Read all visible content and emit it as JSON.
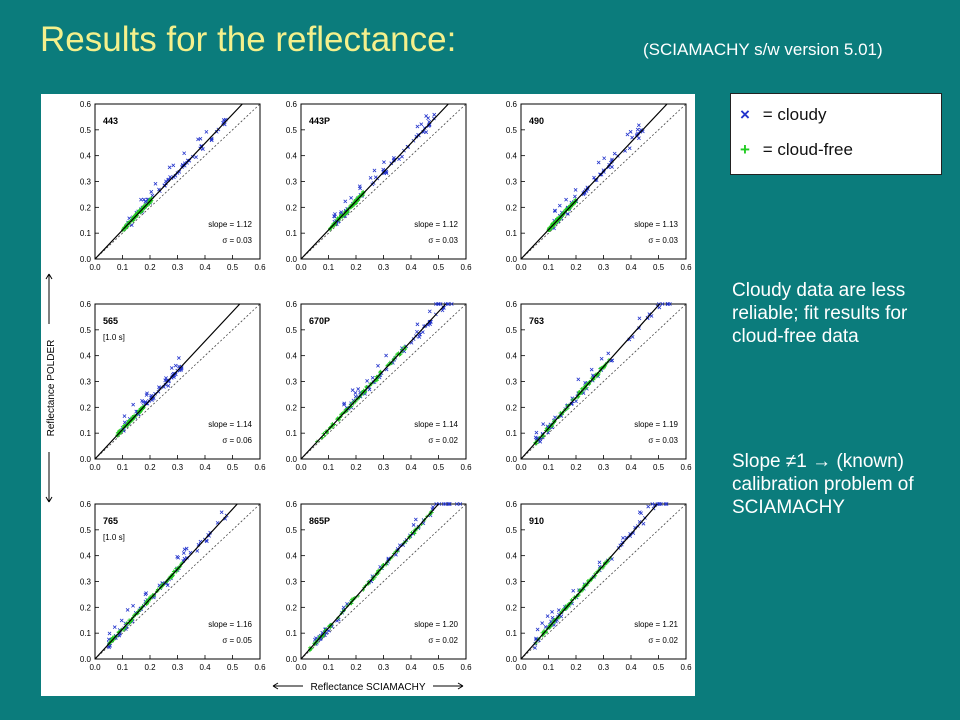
{
  "header": {
    "title": "Results for the reflectance:",
    "subtitle": "(SCIAMACHY s/w version 5.01)"
  },
  "legend": {
    "cloudy_symbol": "×",
    "cloudy_label": " = cloudy",
    "free_symbol": "+",
    "free_label": " = cloud-free"
  },
  "notes": {
    "note1": "Cloudy data are less reliable; fit results for cloud-free data",
    "note2": "Slope ≠1  → (known) calibration problem of SCIAMACHY"
  },
  "colors": {
    "background": "#0b7c7c",
    "title": "#f4f08c",
    "cloudy": "#2233cc",
    "cloud_free": "#22cc22"
  },
  "chart_data": {
    "type": "scatter",
    "xlabel": "Reflectance SCIAMACHY",
    "ylabel": "Reflectance POLDER",
    "xlim": [
      0,
      0.6
    ],
    "ylim": [
      0,
      0.6
    ],
    "ticks": [
      "0.0",
      "0.1",
      "0.2",
      "0.3",
      "0.4",
      "0.5",
      "0.6"
    ],
    "series_legend": [
      "cloudy",
      "cloud-free"
    ],
    "panels": [
      {
        "label": "443",
        "sublabel": "",
        "slope": "1.12",
        "sigma": "0.03",
        "cloudy_range": [
          0.12,
          0.48
        ],
        "free_range": [
          0.1,
          0.21
        ]
      },
      {
        "label": "443P",
        "sublabel": "",
        "slope": "1.12",
        "sigma": "0.03",
        "cloudy_range": [
          0.12,
          0.5
        ],
        "free_range": [
          0.1,
          0.23
        ]
      },
      {
        "label": "490",
        "sublabel": "",
        "slope": "1.13",
        "sigma": "0.03",
        "cloudy_range": [
          0.12,
          0.45
        ],
        "free_range": [
          0.1,
          0.2
        ]
      },
      {
        "label": "565",
        "sublabel": "[1.0 s]",
        "slope": "1.14",
        "sigma": "0.06",
        "cloudy_range": [
          0.1,
          0.32
        ],
        "free_range": [
          0.08,
          0.18
        ]
      },
      {
        "label": "670P",
        "sublabel": "",
        "slope": "1.14",
        "sigma": "0.02",
        "cloudy_range": [
          0.15,
          0.55
        ],
        "free_range": [
          0.05,
          0.38
        ]
      },
      {
        "label": "763",
        "sublabel": "",
        "slope": "1.19",
        "sigma": "0.03",
        "cloudy_range": [
          0.05,
          0.55
        ],
        "free_range": [
          0.05,
          0.32
        ]
      },
      {
        "label": "765",
        "sublabel": "[1.0 s]",
        "slope": "1.16",
        "sigma": "0.05",
        "cloudy_range": [
          0.05,
          0.48
        ],
        "free_range": [
          0.05,
          0.32
        ]
      },
      {
        "label": "865P",
        "sublabel": "",
        "slope": "1.20",
        "sigma": "0.02",
        "cloudy_range": [
          0.05,
          0.58
        ],
        "free_range": [
          0.03,
          0.48
        ]
      },
      {
        "label": "910",
        "sublabel": "",
        "slope": "1.21",
        "sigma": "0.02",
        "cloudy_range": [
          0.05,
          0.55
        ],
        "free_range": [
          0.05,
          0.33
        ]
      }
    ]
  }
}
